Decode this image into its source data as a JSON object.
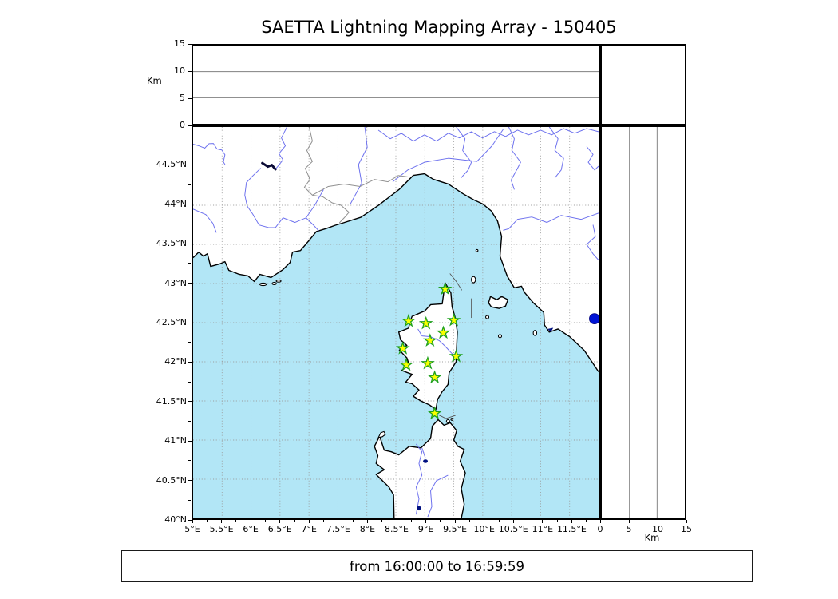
{
  "title": "SAETTA Lightning Mapping Array - 150405",
  "caption": "from 16:00:00 to 16:59:59",
  "axes": {
    "km_label": "Km",
    "km_tick_values": [
      0,
      5,
      10,
      15
    ],
    "km_grid_values": [
      5,
      10
    ],
    "km_max": 15,
    "lon_tick_values": [
      5,
      5.5,
      6,
      6.5,
      7,
      7.5,
      8,
      8.5,
      9,
      9.5,
      10,
      10.5,
      11,
      11.5
    ],
    "lon_tick_labels": [
      "5°E",
      "5.5°E",
      "6°E",
      "6.5°E",
      "7°E",
      "7.5°E",
      "8°E",
      "8.5°E",
      "9°E",
      "9.5°E",
      "10°E",
      "10.5°E",
      "11°E",
      "11.5°E"
    ],
    "lat_tick_values": [
      40,
      40.5,
      41,
      41.5,
      42,
      42.5,
      43,
      43.5,
      44,
      44.5
    ],
    "lat_tick_labels": [
      "40°N",
      "40.5°N",
      "41°N",
      "41.5°N",
      "42°N",
      "42.5°N",
      "43°N",
      "43.5°N",
      "44°N",
      "44.5°N"
    ],
    "lon_range": [
      5,
      12
    ],
    "lat_range": [
      40,
      45
    ]
  },
  "colors": {
    "sea": "#B2E6F6",
    "land": "#FFFFFF",
    "coast": "#000000",
    "river": "#6E72EE",
    "country_border": "#909090",
    "grid": "#999999",
    "lake": "#001080",
    "station_fill": "#FAFF00",
    "station_edge": "#1FA11F",
    "event_fill": "#0014D6",
    "event_edge": "#000080"
  },
  "stations": [
    {
      "lon": 9.35,
      "lat": 42.93
    },
    {
      "lon": 8.72,
      "lat": 42.52
    },
    {
      "lon": 9.02,
      "lat": 42.49
    },
    {
      "lon": 9.5,
      "lat": 42.53
    },
    {
      "lon": 9.32,
      "lat": 42.37
    },
    {
      "lon": 9.09,
      "lat": 42.27
    },
    {
      "lon": 8.62,
      "lat": 42.17
    },
    {
      "lon": 9.54,
      "lat": 42.07
    },
    {
      "lon": 8.68,
      "lat": 41.96
    },
    {
      "lon": 9.05,
      "lat": 41.98
    },
    {
      "lon": 9.17,
      "lat": 41.8
    },
    {
      "lon": 9.17,
      "lat": 41.34
    }
  ],
  "events": [
    {
      "lon": 11.93,
      "lat": 42.55
    }
  ],
  "chart_data": {
    "type": "scatter",
    "title": "SAETTA Lightning Mapping Array - 150405",
    "caption": "from 16:00:00 to 16:59:59",
    "legend": "none",
    "panels": {
      "altitude_vs_longitude": {
        "position": "top",
        "ylabel": "Km",
        "ylim": [
          0,
          15
        ],
        "yticks": [
          0,
          5,
          10,
          15
        ],
        "gridlines_y": [
          5,
          10
        ],
        "points": []
      },
      "plan_view_map": {
        "position": "main",
        "xlim": [
          5,
          12
        ],
        "ylim": [
          40,
          45
        ],
        "xtick_step_deg": 0.5,
        "ytick_step_deg": 0.5,
        "grid": "dotted",
        "region": "Corsica / NW Mediterranean",
        "station_marker": "star",
        "stations_lon_lat": [
          [
            9.35,
            42.93
          ],
          [
            8.72,
            42.52
          ],
          [
            9.02,
            42.49
          ],
          [
            9.5,
            42.53
          ],
          [
            9.32,
            42.37
          ],
          [
            9.09,
            42.27
          ],
          [
            8.62,
            42.17
          ],
          [
            9.54,
            42.07
          ],
          [
            8.68,
            41.96
          ],
          [
            9.05,
            41.98
          ],
          [
            9.17,
            41.8
          ],
          [
            9.17,
            41.34
          ]
        ],
        "event_marker": "circle",
        "events_lon_lat": [
          [
            11.93,
            42.55
          ]
        ]
      },
      "altitude_vs_latitude": {
        "position": "right",
        "xlabel": "Km",
        "xlim": [
          0,
          15
        ],
        "xticks": [
          0,
          5,
          10,
          15
        ],
        "gridlines_x": [
          5,
          10
        ],
        "points": []
      },
      "histogram_box": {
        "position": "top-right",
        "points": []
      }
    }
  }
}
